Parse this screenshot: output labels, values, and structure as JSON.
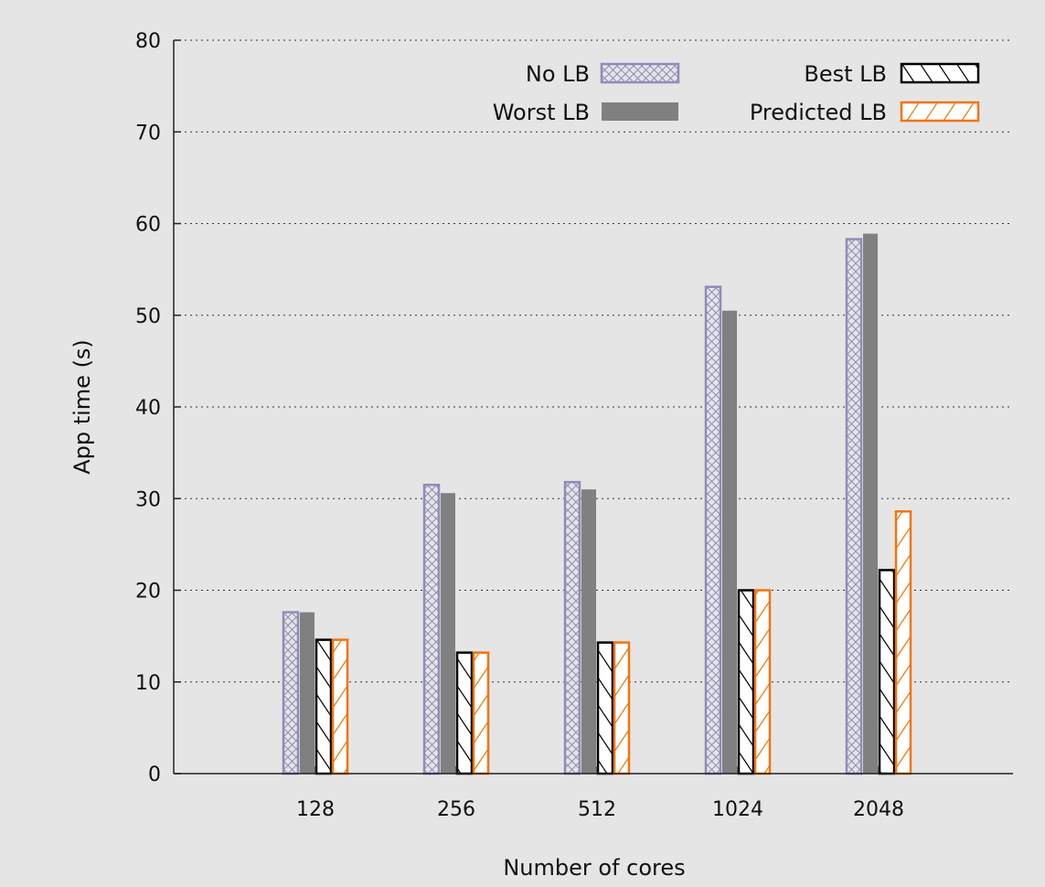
{
  "chart_data": {
    "type": "bar",
    "title": "",
    "xlabel": "Number of cores",
    "ylabel": "App time (s)",
    "ylim": [
      0,
      80
    ],
    "yticks": [
      0,
      10,
      20,
      30,
      40,
      50,
      60,
      70,
      80
    ],
    "grid": "horizontal dotted",
    "legend_position": "top-right",
    "categories": [
      "128",
      "256",
      "512",
      "1024",
      "2048"
    ],
    "series": [
      {
        "name": "No LB",
        "values": [
          17.6,
          31.5,
          31.8,
          53.1,
          58.3
        ],
        "color": "#8e8cb8",
        "pattern": "crosshatch"
      },
      {
        "name": "Worst LB",
        "values": [
          17.6,
          30.6,
          31.0,
          50.5,
          58.9
        ],
        "color": "#808080",
        "pattern": "solid"
      },
      {
        "name": "Best LB",
        "values": [
          14.6,
          13.2,
          14.3,
          20.0,
          22.2
        ],
        "color": "#000000",
        "pattern": "backslash"
      },
      {
        "name": "Predicted LB",
        "values": [
          14.6,
          13.2,
          14.3,
          20.0,
          28.6
        ],
        "color": "#f5730a",
        "pattern": "slash"
      }
    ]
  }
}
